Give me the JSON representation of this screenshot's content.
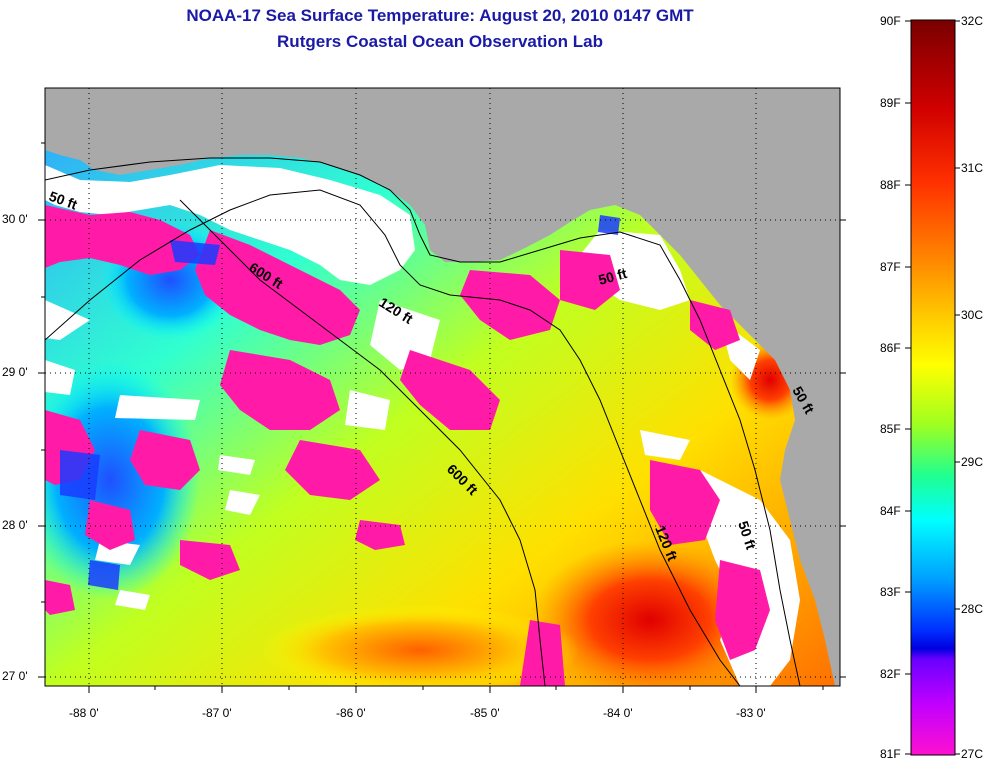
{
  "title": {
    "line1": "NOAA-17 Sea Surface Temperature:  August 20, 2010 0147 GMT",
    "line2": "Rutgers Coastal Ocean Observation Lab"
  },
  "map": {
    "longitude_labels": [
      "-88 0'",
      "-87 0'",
      "-86 0'",
      "-85 0'",
      "-84 0'",
      "-83 0'"
    ],
    "latitude_labels": [
      "30 0'",
      "29 0'",
      "28 0'",
      "27 0'"
    ],
    "contour_labels": [
      "50 ft",
      "600 ft",
      "120 ft",
      "600 ft",
      "50 ft",
      "120 ft",
      "50 ft",
      "50 ft"
    ],
    "land_color": "#a9a9a9",
    "cloud_color": "#ffffff"
  },
  "colorbar": {
    "fahrenheit_labels": [
      "90F",
      "89F",
      "88F",
      "87F",
      "86F",
      "85F",
      "84F",
      "83F",
      "82F",
      "81F"
    ],
    "celsius_labels": [
      "32C",
      "31C",
      "30C",
      "29C",
      "28C",
      "27C"
    ],
    "colors": [
      "#7a0000",
      "#ff0000",
      "#ff8a00",
      "#ffff00",
      "#7fff00",
      "#00ffff",
      "#007fff",
      "#0000ff",
      "#7f00ff",
      "#ff00ff"
    ]
  }
}
